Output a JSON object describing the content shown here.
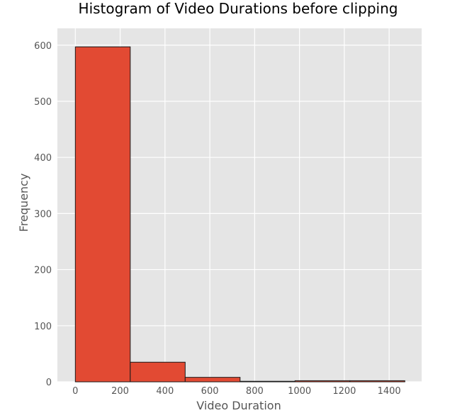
{
  "chart_data": {
    "type": "bar",
    "title": "Histogram of Video Durations before clipping",
    "xlabel": "Video Duration",
    "ylabel": "Frequency",
    "xlim": [
      -80,
      1545
    ],
    "ylim": [
      0,
      630
    ],
    "x_ticks": [
      0,
      200,
      400,
      600,
      800,
      1000,
      1200,
      1400
    ],
    "y_ticks": [
      0,
      100,
      200,
      300,
      400,
      500,
      600
    ],
    "grid": true,
    "bin_edges": [
      0,
      245,
      490,
      735,
      980,
      1225,
      1470
    ],
    "values": [
      597,
      35,
      8,
      1,
      2,
      2
    ],
    "colors": {
      "bar_fill": "#E24A33",
      "bar_edge": "#1a1a1a",
      "plot_background": "#E5E5E5",
      "grid": "#FFFFFF"
    }
  }
}
